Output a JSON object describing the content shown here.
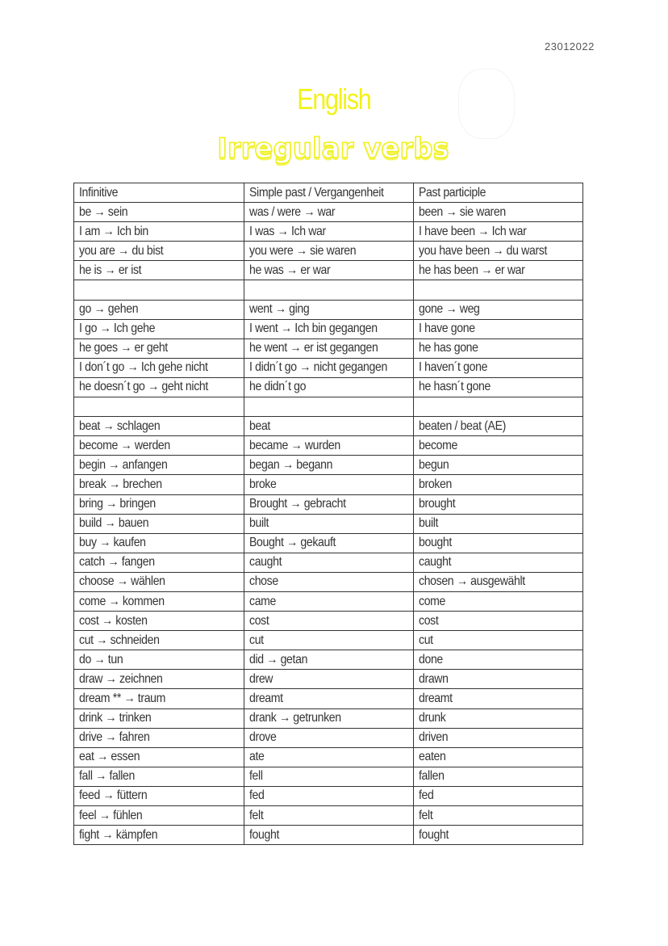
{
  "date": "23012022",
  "title": "English",
  "subtitle": "Irregular verbs",
  "colors": {
    "title": "#f2f21a",
    "text": "#333333"
  },
  "table": {
    "headers": [
      "Infinitive",
      "Simple past / Vergangenheit",
      "Past participle"
    ],
    "rows": [
      [
        "be → sein",
        "was / were → war",
        "been → sie waren"
      ],
      [
        "I am → Ich bin",
        "I was → Ich war",
        "I have been → Ich war"
      ],
      [
        "you are → du bist",
        "you were → sie waren",
        "you have been → du warst"
      ],
      [
        "he is → er ist",
        "he was → er war",
        "he has been → er war"
      ],
      [
        "",
        "",
        ""
      ],
      [
        "go → gehen",
        "went → ging",
        "gone → weg"
      ],
      [
        "I go → Ich gehe",
        "I went → Ich bin gegangen",
        "I have gone"
      ],
      [
        "he goes → er geht",
        "he went → er ist gegangen",
        "he has gone"
      ],
      [
        "I don´t go → Ich gehe nicht",
        "I didn´t go → nicht gegangen",
        "I haven´t gone"
      ],
      [
        "he doesn´t go → geht nicht",
        "he didn´t go",
        "he hasn´t gone"
      ],
      [
        "",
        "",
        ""
      ],
      [
        "beat → schlagen",
        "beat",
        "beaten / beat (AE)"
      ],
      [
        "become → werden",
        "became → wurden",
        "become"
      ],
      [
        "begin → anfangen",
        "began → begann",
        "begun"
      ],
      [
        "break → brechen",
        "broke",
        "broken"
      ],
      [
        "bring → bringen",
        "Brought → gebracht",
        "brought"
      ],
      [
        "build → bauen",
        "built",
        "built"
      ],
      [
        "buy → kaufen",
        "Bought → gekauft",
        "bought"
      ],
      [
        "catch → fangen",
        "caught",
        "caught"
      ],
      [
        "choose → wählen",
        "chose",
        "chosen → ausgewählt"
      ],
      [
        "come → kommen",
        "came",
        "come"
      ],
      [
        "cost → kosten",
        "cost",
        "cost"
      ],
      [
        "cut → schneiden",
        "cut",
        "cut"
      ],
      [
        "do → tun",
        "did → getan",
        "done"
      ],
      [
        "draw → zeichnen",
        "drew",
        "drawn"
      ],
      [
        "dream ** → traum",
        "dreamt",
        "dreamt"
      ],
      [
        "drink → trinken",
        "drank → getrunken",
        "drunk"
      ],
      [
        "drive → fahren",
        "drove",
        "driven"
      ],
      [
        "eat → essen",
        "ate",
        "eaten"
      ],
      [
        "fall → fallen",
        "fell",
        "fallen"
      ],
      [
        "feed → füttern",
        "fed",
        "fed"
      ],
      [
        "feel → fühlen",
        "felt",
        "felt"
      ],
      [
        "fight → kämpfen",
        "fought",
        "fought"
      ]
    ]
  }
}
